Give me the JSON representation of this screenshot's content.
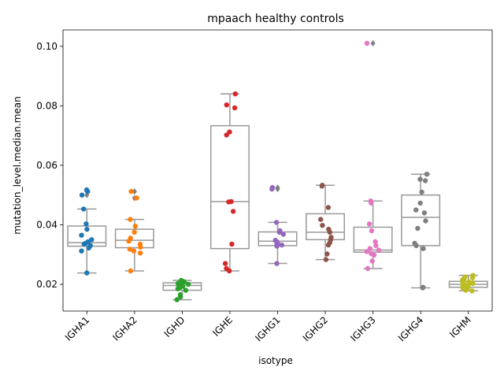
{
  "chart_data": {
    "type": "box-strip",
    "title": "mpaach healthy controls",
    "xlabel": "isotype",
    "ylabel": "mutation_level.median.mean",
    "ylim": [
      0.011,
      0.1055
    ],
    "yticks": [
      0.02,
      0.04,
      0.06,
      0.08,
      0.1
    ],
    "ytick_labels": [
      "0.02",
      "0.04",
      "0.06",
      "0.08",
      "0.10"
    ],
    "categories": [
      "IGHA1",
      "IGHA2",
      "IGHD",
      "IGHE",
      "IGHG1",
      "IGHG2",
      "IGHG3",
      "IGHG4",
      "IGHM"
    ],
    "colors": [
      "#1f77b4",
      "#ff7f0e",
      "#2ca02c",
      "#d62728",
      "#9467bd",
      "#8c564b",
      "#e377c2",
      "#7f7f7f",
      "#bcbd22"
    ],
    "box_color": "#999999",
    "boxes": [
      {
        "q1": 0.0328,
        "median": 0.034,
        "q3": 0.0396,
        "whisker_low": 0.0238,
        "whisker_high": 0.0453,
        "fliers": [
          0.0517,
          0.0512,
          0.05
        ]
      },
      {
        "q1": 0.0323,
        "median": 0.0348,
        "q3": 0.0385,
        "whisker_low": 0.0245,
        "whisker_high": 0.0418,
        "fliers": [
          0.0512,
          0.049
        ]
      },
      {
        "q1": 0.018,
        "median": 0.0196,
        "q3": 0.0205,
        "whisker_low": 0.0148,
        "whisker_high": 0.0213,
        "fliers": []
      },
      {
        "q1": 0.032,
        "median": 0.0478,
        "q3": 0.0733,
        "whisker_low": 0.0245,
        "whisker_high": 0.084,
        "fliers": []
      },
      {
        "q1": 0.033,
        "median": 0.0345,
        "q3": 0.0376,
        "whisker_low": 0.027,
        "whisker_high": 0.0408,
        "fliers": [
          0.0525,
          0.052
        ]
      },
      {
        "q1": 0.035,
        "median": 0.0375,
        "q3": 0.0437,
        "whisker_low": 0.0283,
        "whisker_high": 0.0533,
        "fliers": []
      },
      {
        "q1": 0.0308,
        "median": 0.0315,
        "q3": 0.0392,
        "whisker_low": 0.0253,
        "whisker_high": 0.048,
        "fliers": [
          0.101
        ]
      },
      {
        "q1": 0.033,
        "median": 0.0425,
        "q3": 0.05,
        "whisker_low": 0.0188,
        "whisker_high": 0.057,
        "fliers": []
      },
      {
        "q1": 0.019,
        "median": 0.02,
        "q3": 0.021,
        "whisker_low": 0.0178,
        "whisker_high": 0.023,
        "fliers": []
      }
    ],
    "points": [
      [
        0.0517,
        0.0512,
        0.05,
        0.0453,
        0.0403,
        0.0385,
        0.0365,
        0.035,
        0.0343,
        0.0338,
        0.0335,
        0.033,
        0.0322,
        0.0312,
        0.0238
      ],
      [
        0.0512,
        0.049,
        0.0418,
        0.0395,
        0.0375,
        0.0355,
        0.0345,
        0.0335,
        0.0325,
        0.0318,
        0.0312,
        0.0305,
        0.0245
      ],
      [
        0.0213,
        0.021,
        0.0208,
        0.0205,
        0.0203,
        0.02,
        0.0198,
        0.0196,
        0.0193,
        0.019,
        0.0185,
        0.018,
        0.0165,
        0.0158,
        0.0148
      ],
      [
        0.084,
        0.0803,
        0.0793,
        0.0712,
        0.0702,
        0.0478,
        0.0477,
        0.0445,
        0.0335,
        0.027,
        0.0253,
        0.0245
      ],
      [
        0.0525,
        0.052,
        0.0408,
        0.038,
        0.0375,
        0.0368,
        0.0348,
        0.0343,
        0.034,
        0.0335,
        0.0332,
        0.0328,
        0.027
      ],
      [
        0.0533,
        0.053,
        0.0458,
        0.0418,
        0.0398,
        0.0385,
        0.0375,
        0.0358,
        0.035,
        0.034,
        0.0332,
        0.0302,
        0.0283
      ],
      [
        0.101,
        0.048,
        0.0473,
        0.0403,
        0.038,
        0.0343,
        0.033,
        0.032,
        0.0315,
        0.031,
        0.0303,
        0.0298,
        0.0278,
        0.0253
      ],
      [
        0.057,
        0.0553,
        0.0548,
        0.051,
        0.0473,
        0.045,
        0.044,
        0.0413,
        0.0388,
        0.0338,
        0.033,
        0.032,
        0.019,
        0.0188
      ],
      [
        0.023,
        0.0225,
        0.0222,
        0.0218,
        0.0215,
        0.0212,
        0.021,
        0.0208,
        0.0205,
        0.0203,
        0.02,
        0.0198,
        0.0195,
        0.0192,
        0.019,
        0.0188,
        0.0185,
        0.0182,
        0.018,
        0.0178
      ]
    ]
  }
}
